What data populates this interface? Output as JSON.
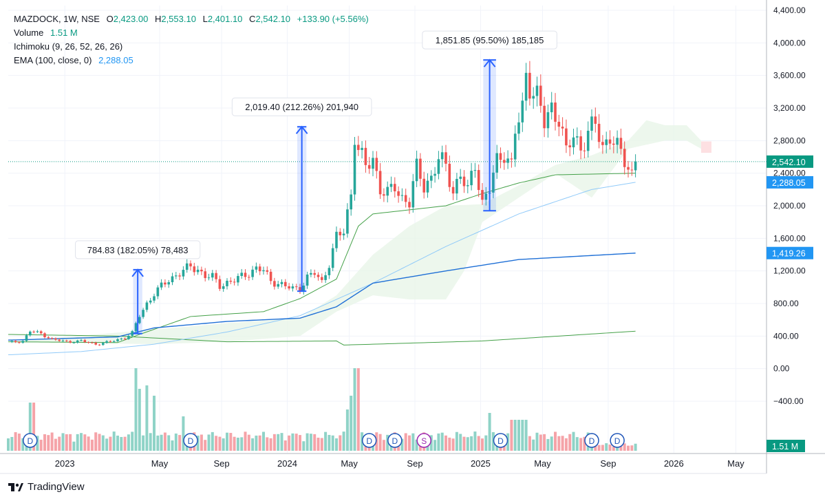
{
  "header": {
    "symbol": "MAZDOCK, 1W, NSE",
    "o_label": "O",
    "o_value": "2,423.00",
    "h_label": "H",
    "h_value": "2,553.10",
    "l_label": "L",
    "l_value": "2,401.10",
    "c_label": "C",
    "c_value": "2,542.10",
    "change": "+133.90 (+5.56%)",
    "volume_label": "Volume",
    "volume_value": "1.51 M",
    "ichimoku_label": "Ichimoku (9, 26, 52, 26, 26)",
    "ema_label": "EMA (100, close, 0)",
    "ema_value": "2,288.05"
  },
  "footer": {
    "brand": "TradingView"
  },
  "colors": {
    "up": "#26a69a",
    "down": "#ef5350",
    "vol_up": "#8fd3c7",
    "vol_down": "#f5a3a8",
    "ema": "#1e6fd6",
    "ichi": "#43a047",
    "cloud": "#e8f5e9",
    "last_price": "#089981",
    "measure": "#2962ff",
    "dividend": "#1e54b7",
    "split": "#9c27b0"
  },
  "chart_data": {
    "type": "candlestick",
    "title": "MAZDOCK, 1W, NSE",
    "ylim": [
      -500,
      4400
    ],
    "y_ticks": [
      "4,400.00",
      "4,000.00",
      "3,600.00",
      "3,200.00",
      "2,800.00",
      "2,400.00",
      "2,000.00",
      "1,600.00",
      "1,200.00",
      "800.00",
      "400.00",
      "0.00",
      "−400.00"
    ],
    "y_tick_values": [
      4400,
      4000,
      3600,
      3200,
      2800,
      2400,
      2000,
      1600,
      1200,
      800,
      400,
      0,
      -400
    ],
    "x_labels": [
      "2023",
      "May",
      "Sep",
      "2024",
      "May",
      "Sep",
      "2025",
      "May",
      "Sep",
      "2026",
      "May"
    ],
    "x_label_weeks": [
      14,
      40,
      57,
      75,
      92,
      110,
      128,
      145,
      163,
      181,
      198
    ],
    "price_labels": [
      {
        "text": "2,542.10",
        "value": 2542.1,
        "color": "#089981"
      },
      {
        "text": "2,400.00",
        "value": 2400,
        "color": "plain"
      },
      {
        "text": "2,288.05",
        "value": 2288.05,
        "color": "#2196f3"
      },
      {
        "text": "1,419.26",
        "value": 1419.26,
        "color": "#2196f3"
      }
    ],
    "volume_badge": "1.51 M",
    "measurements": [
      {
        "label": "784.83 (182.05%) 78,483",
        "from_week": 35,
        "to_week": 36,
        "low": 430,
        "high": 1215
      },
      {
        "label": "2,019.40 (212.26%) 201,940",
        "from_week": 80,
        "to_week": 81,
        "low": 951,
        "high": 2970
      },
      {
        "label": "1,851.85 (95.50%) 185,185",
        "from_week": 131,
        "to_week": 133,
        "low": 1939,
        "high": 3791
      }
    ],
    "events": [
      {
        "type": "D",
        "week": 6
      },
      {
        "type": "D",
        "week": 50
      },
      {
        "type": "D",
        "week": 99
      },
      {
        "type": "D",
        "week": 106
      },
      {
        "type": "S",
        "week": 114
      },
      {
        "type": "D",
        "week": 135
      },
      {
        "type": "D",
        "week": 160
      },
      {
        "type": "D",
        "week": 167
      }
    ],
    "key_points": [
      [
        0,
        320
      ],
      [
        4,
        340
      ],
      [
        6,
        460
      ],
      [
        9,
        430
      ],
      [
        12,
        360
      ],
      [
        16,
        330
      ],
      [
        20,
        340
      ],
      [
        24,
        300
      ],
      [
        28,
        330
      ],
      [
        32,
        380
      ],
      [
        34,
        440
      ],
      [
        36,
        650
      ],
      [
        38,
        800
      ],
      [
        40,
        920
      ],
      [
        42,
        1010
      ],
      [
        44,
        1090
      ],
      [
        46,
        1150
      ],
      [
        48,
        1200
      ],
      [
        50,
        1250
      ],
      [
        52,
        1220
      ],
      [
        54,
        1140
      ],
      [
        56,
        1120
      ],
      [
        58,
        1020
      ],
      [
        60,
        1060
      ],
      [
        62,
        1080
      ],
      [
        64,
        1130
      ],
      [
        66,
        1180
      ],
      [
        68,
        1230
      ],
      [
        70,
        1200
      ],
      [
        72,
        1080
      ],
      [
        74,
        1050
      ],
      [
        76,
        1010
      ],
      [
        78,
        980
      ],
      [
        80,
        990
      ],
      [
        82,
        1120
      ],
      [
        84,
        1170
      ],
      [
        86,
        1060
      ],
      [
        88,
        1300
      ],
      [
        90,
        1610
      ],
      [
        92,
        1680
      ],
      [
        94,
        2150
      ],
      [
        95,
        2890
      ],
      [
        96,
        2700
      ],
      [
        98,
        2460
      ],
      [
        100,
        2580
      ],
      [
        102,
        2220
      ],
      [
        104,
        2140
      ],
      [
        106,
        2230
      ],
      [
        108,
        2100
      ],
      [
        110,
        2050
      ],
      [
        112,
        2450
      ],
      [
        114,
        2250
      ],
      [
        116,
        2350
      ],
      [
        118,
        2570
      ],
      [
        120,
        2480
      ],
      [
        122,
        2190
      ],
      [
        124,
        2380
      ],
      [
        126,
        2170
      ],
      [
        128,
        2530
      ],
      [
        130,
        2040
      ],
      [
        132,
        2200
      ],
      [
        134,
        2540
      ],
      [
        136,
        2670
      ],
      [
        138,
        2490
      ],
      [
        139,
        2900
      ],
      [
        141,
        3180
      ],
      [
        142,
        3610
      ],
      [
        143,
        3500
      ],
      [
        145,
        3350
      ],
      [
        147,
        3000
      ],
      [
        149,
        3200
      ],
      [
        151,
        3100
      ],
      [
        153,
        2640
      ],
      [
        155,
        2860
      ],
      [
        157,
        2720
      ],
      [
        159,
        2900
      ],
      [
        161,
        2990
      ],
      [
        163,
        2720
      ],
      [
        165,
        2880
      ],
      [
        167,
        2700
      ],
      [
        169,
        2550
      ],
      [
        171,
        2400
      ],
      [
        172,
        2542
      ]
    ],
    "series": [
      {
        "name": "EMA (100, close, 0)",
        "last": 2288.05,
        "values": [
          [
            0,
            310
          ],
          [
            30,
            360
          ],
          [
            50,
            560
          ],
          [
            80,
            820
          ],
          [
            100,
            1320
          ],
          [
            120,
            1700
          ],
          [
            140,
            2020
          ],
          [
            160,
            2200
          ],
          [
            172,
            2288
          ]
        ]
      },
      {
        "name": "Ichimoku",
        "last": 1419.26,
        "values": [
          [
            0,
            350
          ],
          [
            30,
            390
          ],
          [
            40,
            500
          ],
          [
            60,
            580
          ],
          [
            80,
            620
          ],
          [
            90,
            760
          ],
          [
            100,
            1050
          ],
          [
            120,
            1200
          ],
          [
            140,
            1340
          ],
          [
            172,
            1419
          ]
        ]
      }
    ]
  }
}
